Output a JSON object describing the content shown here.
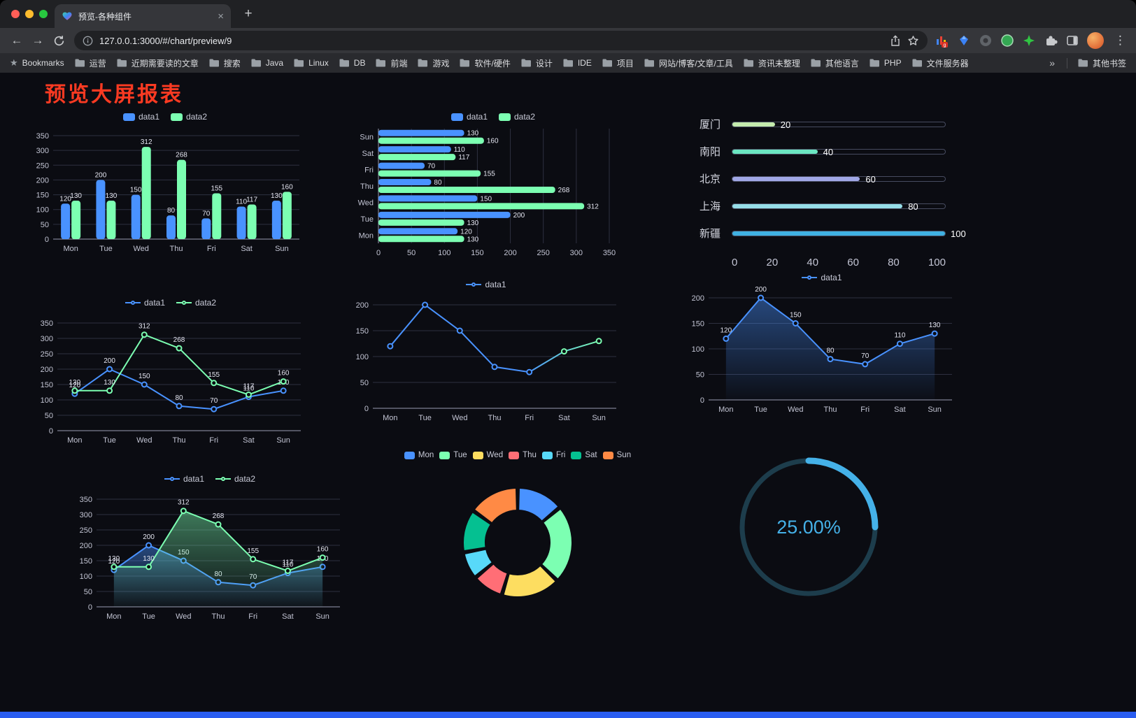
{
  "browser": {
    "tab": {
      "title": "预览-各种组件",
      "close_glyph": "×"
    },
    "new_tab_glyph": "+",
    "nav": {
      "back_glyph": "←",
      "forward_glyph": "→"
    },
    "address": {
      "url": "127.0.0.1:3000/#/chart/preview/9"
    },
    "extension_badge": "g",
    "menu_glyph": "⋮",
    "bookmarks_bar": {
      "star_glyph": "★",
      "label": "Bookmarks",
      "items": [
        "运营",
        "近期需要读的文章",
        "搜索",
        "Java",
        "Linux",
        "DB",
        "前端",
        "游戏",
        "软件/硬件",
        "设计",
        "IDE",
        "项目",
        "网站/博客/文章/工具",
        "资讯未整理",
        "其他语言",
        "PHP",
        "文件服务器"
      ],
      "overflow_glyph": "»",
      "other_bookmarks": "其他书签"
    }
  },
  "page": {
    "title": "预览大屏报表",
    "title_color": "#fa3a22",
    "footer_color": "#2a5df0"
  },
  "chart_data": [
    {
      "id": "grouped-bar",
      "type": "bar",
      "categories": [
        "Mon",
        "Tue",
        "Wed",
        "Thu",
        "Fri",
        "Sat",
        "Sun"
      ],
      "series": [
        {
          "name": "data1",
          "color": "#4992ff",
          "values": [
            120,
            200,
            150,
            80,
            70,
            110,
            130
          ]
        },
        {
          "name": "data2",
          "color": "#7cffb2",
          "values": [
            130,
            130,
            312,
            268,
            155,
            117,
            160
          ]
        }
      ],
      "ylim": [
        0,
        350
      ],
      "yticks": [
        0,
        50,
        100,
        150,
        200,
        250,
        300,
        350
      ],
      "show_labels": true,
      "legend_position": "top",
      "grid": true
    },
    {
      "id": "horizontal-bar",
      "type": "hbar",
      "categories": [
        "Mon",
        "Tue",
        "Wed",
        "Thu",
        "Fri",
        "Sat",
        "Sun"
      ],
      "series": [
        {
          "name": "data1",
          "color": "#4992ff",
          "values": [
            120,
            200,
            150,
            80,
            70,
            110,
            130
          ]
        },
        {
          "name": "data2",
          "color": "#7cffb2",
          "values": [
            130,
            130,
            312,
            268,
            155,
            117,
            160
          ]
        }
      ],
      "xlim": [
        0,
        350
      ],
      "xticks": [
        0,
        50,
        100,
        150,
        200,
        250,
        300,
        350
      ],
      "show_labels": true,
      "legend_position": "top",
      "grid": true
    },
    {
      "id": "capsule-rank",
      "type": "capsule",
      "rows": [
        {
          "label": "厦门",
          "value": 20,
          "color": "#c4ebad"
        },
        {
          "label": "南阳",
          "value": 40,
          "color": "#6be6c1"
        },
        {
          "label": "北京",
          "value": 60,
          "color": "#a0a7e6"
        },
        {
          "label": "上海",
          "value": 80,
          "color": "#96dee8"
        },
        {
          "label": "新疆",
          "value": 100,
          "color": "#3fb1e3"
        }
      ],
      "xlim": [
        0,
        100
      ],
      "xticks": [
        0,
        20,
        40,
        60,
        80,
        100
      ]
    },
    {
      "id": "two-line",
      "type": "line",
      "categories": [
        "Mon",
        "Tue",
        "Wed",
        "Thu",
        "Fri",
        "Sat",
        "Sun"
      ],
      "series": [
        {
          "name": "data1",
          "color": "#4992ff",
          "values": [
            120,
            200,
            150,
            80,
            70,
            110,
            130
          ]
        },
        {
          "name": "data2",
          "color": "#7cffb2",
          "values": [
            130,
            130,
            312,
            268,
            155,
            117,
            160
          ]
        }
      ],
      "ylim": [
        0,
        350
      ],
      "yticks": [
        0,
        50,
        100,
        150,
        200,
        250,
        300,
        350
      ],
      "show_labels": true,
      "legend_position": "top",
      "grid": true
    },
    {
      "id": "gradient-line",
      "type": "line",
      "categories": [
        "Mon",
        "Tue",
        "Wed",
        "Thu",
        "Fri",
        "Sat",
        "Sun"
      ],
      "series": [
        {
          "name": "data1",
          "gradient": [
            "#4992ff",
            "#7cffb2"
          ],
          "values": [
            120,
            200,
            150,
            80,
            70,
            110,
            130
          ]
        }
      ],
      "ylim": [
        0,
        200
      ],
      "yticks": [
        0,
        50,
        100,
        150,
        200
      ],
      "show_labels": false,
      "legend_position": "top",
      "grid": true
    },
    {
      "id": "area-line",
      "type": "area",
      "categories": [
        "Mon",
        "Tue",
        "Wed",
        "Thu",
        "Fri",
        "Sat",
        "Sun"
      ],
      "series": [
        {
          "name": "data1",
          "color": "#4992ff",
          "fill": true,
          "values": [
            120,
            200,
            150,
            80,
            70,
            110,
            130
          ]
        }
      ],
      "ylim": [
        0,
        200
      ],
      "yticks": [
        0,
        50,
        100,
        150,
        200
      ],
      "show_labels": true,
      "legend_position": "top",
      "grid": true
    },
    {
      "id": "two-line-area",
      "type": "line",
      "categories": [
        "Mon",
        "Tue",
        "Wed",
        "Thu",
        "Fri",
        "Sat",
        "Sun"
      ],
      "series": [
        {
          "name": "data1",
          "color": "#4992ff",
          "fill": true,
          "values": [
            120,
            200,
            150,
            80,
            70,
            110,
            130
          ]
        },
        {
          "name": "data2",
          "color": "#7cffb2",
          "fill": true,
          "values": [
            130,
            130,
            312,
            268,
            155,
            117,
            160
          ]
        }
      ],
      "ylim": [
        0,
        350
      ],
      "yticks": [
        0,
        50,
        100,
        150,
        200,
        250,
        300,
        350
      ],
      "show_labels": true,
      "legend_position": "top",
      "grid": true
    },
    {
      "id": "donut",
      "type": "donut",
      "legend_position": "top",
      "slices": [
        {
          "label": "Mon",
          "value": 120,
          "color": "#4992ff"
        },
        {
          "label": "Tue",
          "value": 200,
          "color": "#7cffb2"
        },
        {
          "label": "Wed",
          "value": 150,
          "color": "#fddd60"
        },
        {
          "label": "Thu",
          "value": 80,
          "color": "#ff6e76"
        },
        {
          "label": "Fri",
          "value": 70,
          "color": "#58d9f9"
        },
        {
          "label": "Sat",
          "value": 110,
          "color": "#05c091"
        },
        {
          "label": "Sun",
          "value": 130,
          "color": "#ff8a45"
        }
      ]
    },
    {
      "id": "gauge",
      "type": "gauge",
      "value": 25,
      "max": 100,
      "label": "25.00%",
      "color": "#45b1e8",
      "track_color": "#1d3d4c"
    }
  ]
}
